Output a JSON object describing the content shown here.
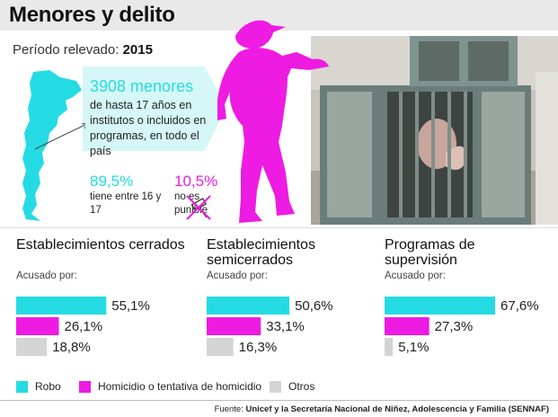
{
  "title": "Menores y delito",
  "period": {
    "label": "Período relevado:",
    "year": "2015"
  },
  "summary": {
    "total": "3908 menores",
    "description": "de hasta 17 años en institutos o incluidos en programas, en todo el país",
    "age_16_17": {
      "value": "89,5%",
      "description": "tiene entre 16 y 17"
    },
    "not_punishable": {
      "value": "10,5%",
      "description": "no es punible"
    }
  },
  "colors": {
    "robo": "#25dbe3",
    "homicidio": "#ee1be3",
    "otros": "#d4d4d4"
  },
  "chart_data": [
    {
      "type": "bar",
      "orientation": "horizontal",
      "title": "Establecimientos cerrados",
      "subtitle": "Acusado por:",
      "categories": [
        "Robo",
        "Homicidio o tentativa de homicidio",
        "Otros"
      ],
      "values": [
        55.1,
        26.1,
        18.8
      ],
      "labels": [
        "55,1%",
        "26,1%",
        "18,8%"
      ],
      "xlim": [
        0,
        100
      ]
    },
    {
      "type": "bar",
      "orientation": "horizontal",
      "title": "Establecimientos semicerrados",
      "subtitle": "Acusado por:",
      "categories": [
        "Robo",
        "Homicidio o tentativa de homicidio",
        "Otros"
      ],
      "values": [
        50.6,
        33.1,
        16.3
      ],
      "labels": [
        "50,6%",
        "33,1%",
        "16,3%"
      ],
      "xlim": [
        0,
        100
      ]
    },
    {
      "type": "bar",
      "orientation": "horizontal",
      "title": "Programas de supervisión",
      "subtitle": "Acusado por:",
      "categories": [
        "Robo",
        "Homicidio o tentativa de homicidio",
        "Otros"
      ],
      "values": [
        67.6,
        27.3,
        5.1
      ],
      "labels": [
        "67,6%",
        "27,3%",
        "5,1%"
      ],
      "xlim": [
        0,
        100
      ]
    }
  ],
  "legend": [
    "Robo",
    "Homicidio o tentativa de homicidio",
    "Otros"
  ],
  "source": {
    "label": "Fuente:",
    "text": "Unicef y la Secretaría Nacional de Niñez, Adolescencia y Familia (SENNAF)"
  }
}
